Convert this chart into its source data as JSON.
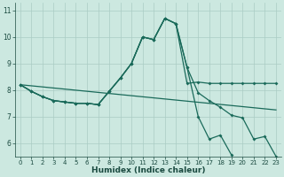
{
  "bg_color": "#cce8e0",
  "grid_color": "#aaccc4",
  "line_color": "#1a6a5a",
  "xlabel": "Humidex (Indice chaleur)",
  "xlim": [
    -0.5,
    23.5
  ],
  "ylim": [
    5.5,
    11.3
  ],
  "yticks": [
    6,
    7,
    8,
    9,
    10,
    11
  ],
  "xticks": [
    0,
    1,
    2,
    3,
    4,
    5,
    6,
    7,
    8,
    9,
    10,
    11,
    12,
    13,
    14,
    15,
    16,
    17,
    18,
    19,
    20,
    21,
    22,
    23
  ],
  "line1_x": [
    0,
    1,
    2,
    3,
    4,
    5,
    6,
    7,
    8,
    9,
    10,
    11,
    12,
    13,
    14,
    15,
    16,
    17,
    18,
    19,
    20,
    21,
    22,
    23
  ],
  "line1_y": [
    8.2,
    7.95,
    7.75,
    7.6,
    7.55,
    7.5,
    7.5,
    7.45,
    7.95,
    8.45,
    9.0,
    10.0,
    9.9,
    10.7,
    10.5,
    8.25,
    8.3,
    8.25,
    8.25,
    8.25,
    8.25,
    8.25,
    8.25,
    8.25
  ],
  "line2_x": [
    0,
    1,
    2,
    3,
    4,
    5,
    6,
    7,
    8,
    9,
    10,
    11,
    12,
    13,
    14,
    15,
    16,
    17,
    18,
    19,
    20,
    21,
    22,
    23
  ],
  "line2_y": [
    8.2,
    7.95,
    7.75,
    7.6,
    7.55,
    7.5,
    7.5,
    7.45,
    7.95,
    8.45,
    9.0,
    10.0,
    9.9,
    10.7,
    10.5,
    8.85,
    7.9,
    7.6,
    7.35,
    7.05,
    6.95,
    6.15,
    6.25,
    5.5
  ],
  "line3_x": [
    0,
    1,
    2,
    3,
    4,
    5,
    6,
    7,
    8,
    9,
    10,
    11,
    12,
    13,
    14,
    15,
    16,
    17,
    18,
    19,
    20,
    21,
    22,
    23
  ],
  "line3_y": [
    8.2,
    7.95,
    7.75,
    7.6,
    7.55,
    7.5,
    7.5,
    7.45,
    7.95,
    8.45,
    9.0,
    10.0,
    9.9,
    10.7,
    10.5,
    8.85,
    7.0,
    6.15,
    6.3,
    5.55,
    5.55,
    5.55,
    5.55,
    5.55
  ],
  "line4_x": [
    0,
    23
  ],
  "line4_y": [
    8.2,
    7.25
  ]
}
